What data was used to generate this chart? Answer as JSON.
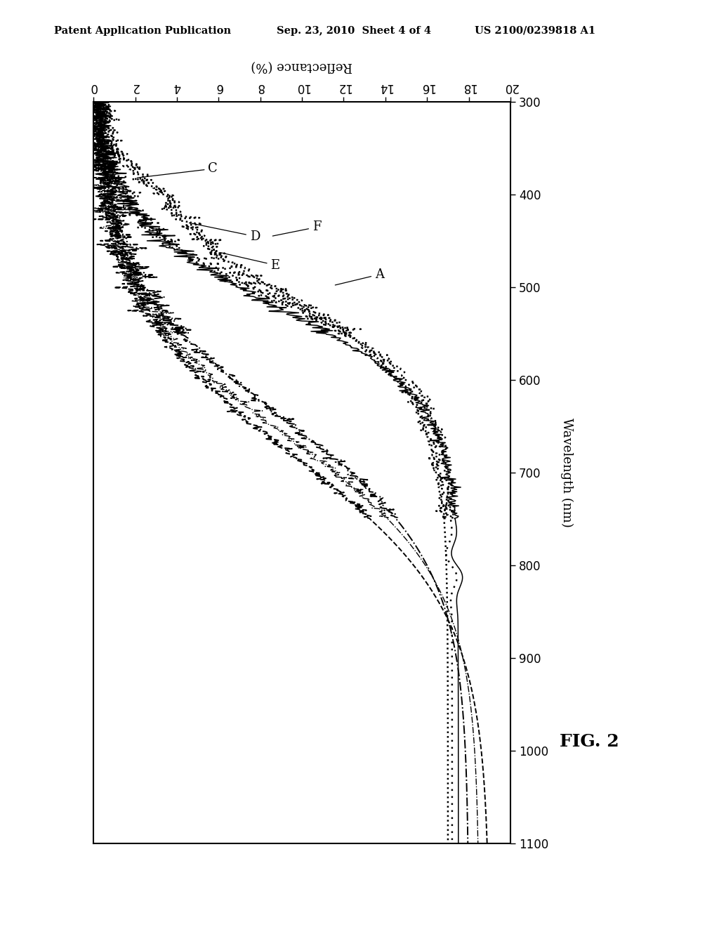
{
  "header_left": "Patent Application Publication",
  "header_mid": "Sep. 23, 2010  Sheet 4 of 4",
  "header_right": "US 2100/0239818 A1",
  "fig_label": "FIG. 2",
  "x_label": "Wavelength (nm)",
  "y_label": "Reflectance (%)",
  "wl_min": 300,
  "wl_max": 1100,
  "ref_min": 0,
  "ref_max": 20,
  "wl_ticks": [
    300,
    400,
    500,
    600,
    700,
    800,
    900,
    1000,
    1100
  ],
  "ref_ticks": [
    0,
    2,
    4,
    6,
    8,
    10,
    12,
    14,
    16,
    18,
    20
  ],
  "background": "#ffffff",
  "line_color": "#000000",
  "curves": {
    "A": {
      "style": "--",
      "lw": 1.4,
      "high": 19.0,
      "mid": 680,
      "steep": 0.012
    },
    "B": {
      "style": "-.",
      "lw": 1.4,
      "high": 18.0,
      "mid": 640,
      "steep": 0.013
    },
    "C": {
      "style": ":",
      "lw": 1.8,
      "high": 17.0,
      "mid": 500,
      "steep": 0.018
    },
    "D": {
      "style": "-",
      "lw": 1.1,
      "high": 17.5,
      "mid": 520,
      "steep": 0.02
    },
    "E": {
      "style": "dotted",
      "lw": 1.8,
      "high": 17.2,
      "mid": 510,
      "steep": 0.022
    },
    "F": {
      "style": "-.",
      "lw": 1.0,
      "high": 18.5,
      "mid": 660,
      "steep": 0.013
    }
  }
}
